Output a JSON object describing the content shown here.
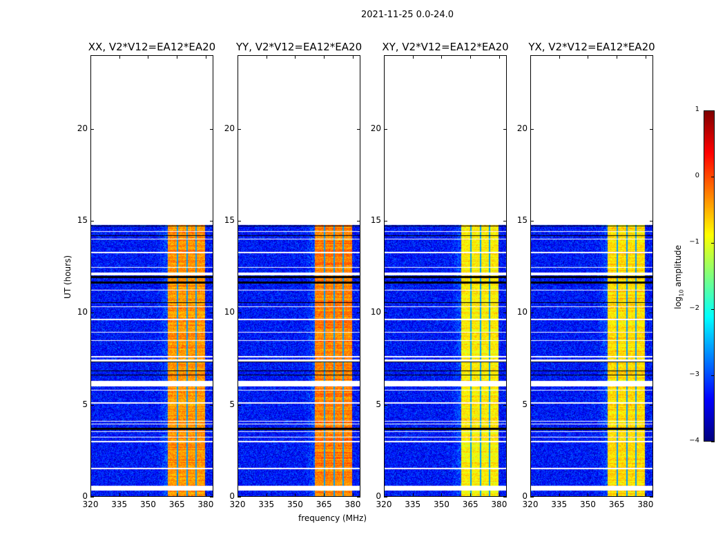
{
  "chart_data": {
    "type": "heatmap",
    "suptitle": "2021-11-25 0.0-24.0",
    "xlabel": "frequency (MHz)",
    "ylabel": "UT (hours)",
    "xlim": [
      320,
      384
    ],
    "ylim": [
      0,
      24
    ],
    "xticks": [
      "320",
      "335",
      "350",
      "365",
      "380"
    ],
    "xtick_values": [
      320,
      335,
      350,
      365,
      380
    ],
    "yticks": [
      "0",
      "5",
      "10",
      "15",
      "20"
    ],
    "ytick_values": [
      0,
      5,
      10,
      15,
      20
    ],
    "panels": [
      {
        "title": "XX, V2*V12=EA12*EA20",
        "band_level": -0.35
      },
      {
        "title": "YY, V2*V12=EA12*EA20",
        "band_level": -0.25
      },
      {
        "title": "XY, V2*V12=EA12*EA20",
        "band_level": -0.8
      },
      {
        "title": "YX, V2*V12=EA12*EA20",
        "band_level": -0.7
      }
    ],
    "data_time_range_hours": [
      0,
      14.8
    ],
    "background_level": -3.3,
    "bright_band_mhz": [
      360.5,
      380
    ],
    "band_notches_mhz": [
      365.5,
      370.5,
      375.2
    ],
    "flagged_intervals_hours": [
      [
        0.3,
        0.55
      ],
      [
        1.45,
        1.55
      ],
      [
        2.95,
        3.0
      ],
      [
        3.2,
        3.25
      ],
      [
        3.5,
        3.55
      ],
      [
        3.9,
        3.95
      ],
      [
        4.05,
        4.1
      ],
      [
        5.05,
        5.1
      ],
      [
        5.75,
        5.8
      ],
      [
        6.0,
        6.3
      ],
      [
        7.35,
        7.45
      ],
      [
        7.55,
        7.65
      ],
      [
        8.45,
        8.5
      ],
      [
        8.9,
        8.95
      ],
      [
        9.6,
        9.65
      ],
      [
        10.3,
        10.35
      ],
      [
        11.2,
        11.25
      ],
      [
        12.05,
        12.2
      ],
      [
        12.45,
        12.5
      ],
      [
        13.25,
        13.3
      ],
      [
        14.0,
        14.05
      ],
      [
        14.4,
        14.45
      ]
    ],
    "dropout_intervals_hours": [
      [
        3.62,
        3.72
      ],
      [
        6.6,
        6.63
      ],
      [
        6.8,
        6.83
      ],
      [
        7.3,
        7.33
      ],
      [
        10.55,
        10.58
      ],
      [
        11.6,
        11.7
      ],
      [
        11.9,
        12.0
      ],
      [
        12.7,
        12.73
      ],
      [
        13.6,
        13.63
      ],
      [
        14.2,
        14.23
      ],
      [
        14.7,
        14.73
      ]
    ],
    "colorbar": {
      "label": "log10 amplitude",
      "label_main": "log",
      "label_sub": "10",
      "label_rest": " amplitude",
      "range": [
        -4,
        1
      ],
      "ticks": [
        "1",
        "0",
        "−1",
        "−2",
        "−3",
        "−4"
      ],
      "tick_values": [
        1,
        0,
        -1,
        -2,
        -3,
        -4
      ],
      "colormap": "jet"
    }
  }
}
